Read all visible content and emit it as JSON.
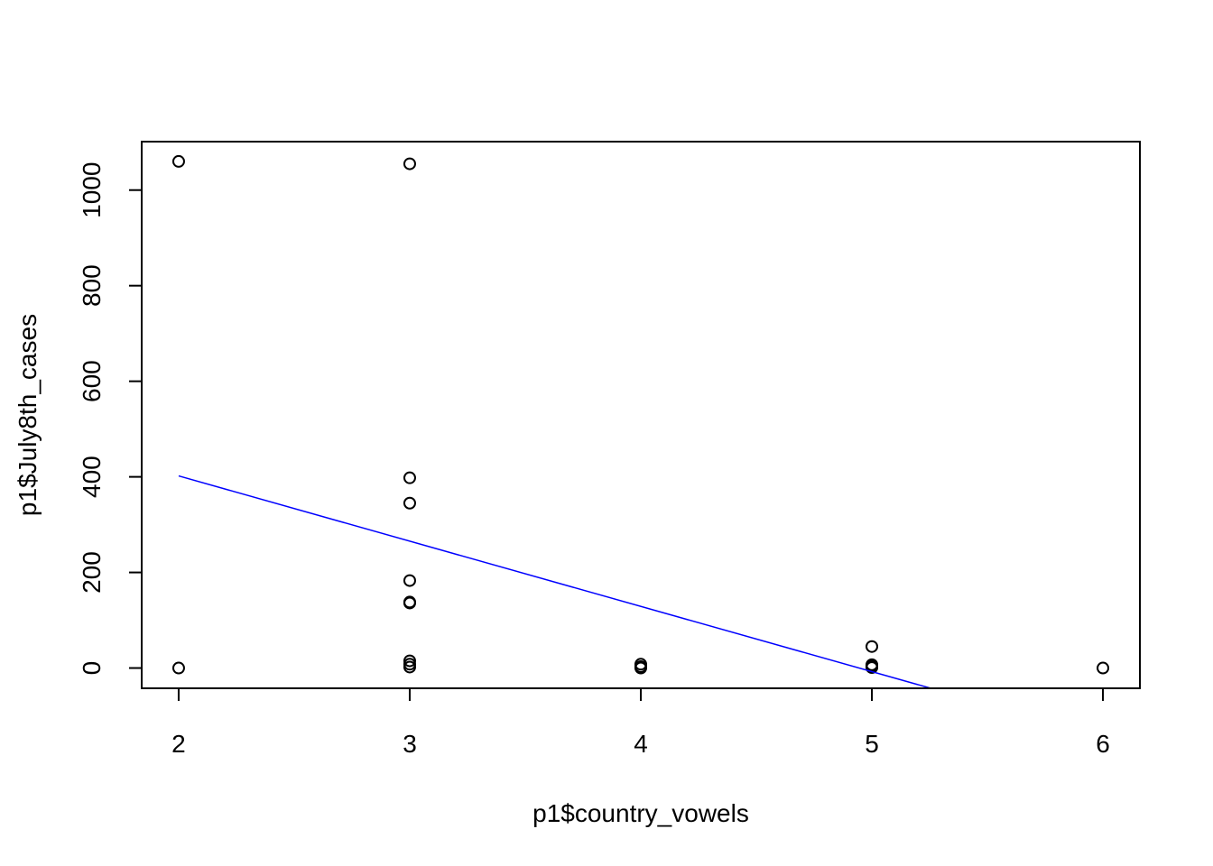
{
  "chart_data": {
    "type": "scatter",
    "title": "",
    "xlabel": "p1$country_vowels",
    "ylabel": "p1$July8th_cases",
    "xlim": [
      1.84,
      6.16
    ],
    "ylim": [
      -42.4,
      1101.4
    ],
    "x_ticks": [
      2,
      3,
      4,
      5,
      6
    ],
    "y_ticks": [
      0,
      200,
      400,
      600,
      800,
      1000
    ],
    "grid": false,
    "legend": "none",
    "point_color": "#000000",
    "line_color": "#0000ff",
    "series": [
      {
        "points": [
          {
            "x": 2,
            "y": 1060
          },
          {
            "x": 2,
            "y": 0
          },
          {
            "x": 3,
            "y": 1055
          },
          {
            "x": 3,
            "y": 398
          },
          {
            "x": 3,
            "y": 345
          },
          {
            "x": 3,
            "y": 183
          },
          {
            "x": 3,
            "y": 138
          },
          {
            "x": 3,
            "y": 136
          },
          {
            "x": 3,
            "y": 15
          },
          {
            "x": 3,
            "y": 8
          },
          {
            "x": 3,
            "y": 2
          },
          {
            "x": 4,
            "y": 8
          },
          {
            "x": 4,
            "y": 3
          },
          {
            "x": 4,
            "y": 0
          },
          {
            "x": 5,
            "y": 45
          },
          {
            "x": 5,
            "y": 7
          },
          {
            "x": 5,
            "y": 4
          },
          {
            "x": 5,
            "y": 1
          },
          {
            "x": 6,
            "y": 0
          }
        ]
      }
    ],
    "regression_line": {
      "intercept": 675,
      "slope": -136.5
    }
  }
}
